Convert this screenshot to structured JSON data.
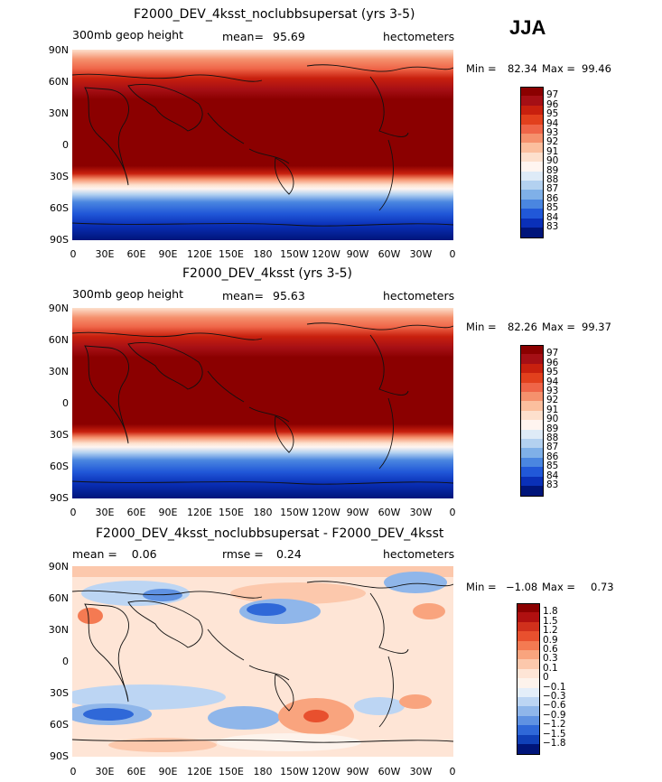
{
  "season": "JJA",
  "panels": [
    {
      "title": "F2000_DEV_4ksst_noclubbsupersat (yrs 3-5)",
      "left_text": "300mb geop height",
      "center_label": "mean=",
      "center_value": "95.69",
      "right_text": "hectometers",
      "min_label": "Min =",
      "min_value": "82.34",
      "max_label": "Max =",
      "max_value": "99.46",
      "colorbar_labels": [
        "97",
        "96",
        "95",
        "94",
        "93",
        "92",
        "91",
        "90",
        "89",
        "88",
        "87",
        "86",
        "85",
        "84",
        "83"
      ],
      "colorbar_colors": [
        "#8b0000",
        "#a50f15",
        "#c8200e",
        "#e2401d",
        "#ef6548",
        "#f5916d",
        "#fbbf9e",
        "#fde0cd",
        "#fff5f0",
        "#deebf7",
        "#b3d1f0",
        "#7fb0e8",
        "#4a86e0",
        "#2158d8",
        "#0a30b8",
        "#00157a"
      ]
    },
    {
      "title": "F2000_DEV_4ksst (yrs 3-5)",
      "left_text": "300mb geop height",
      "center_label": "mean=",
      "center_value": "95.63",
      "right_text": "hectometers",
      "min_label": "Min =",
      "min_value": "82.26",
      "max_label": "Max =",
      "max_value": "99.37",
      "colorbar_labels": [
        "97",
        "96",
        "95",
        "94",
        "93",
        "92",
        "91",
        "90",
        "89",
        "88",
        "87",
        "86",
        "85",
        "84",
        "83"
      ],
      "colorbar_colors": [
        "#8b0000",
        "#a50f15",
        "#c8200e",
        "#e2401d",
        "#ef6548",
        "#f5916d",
        "#fbbf9e",
        "#fde0cd",
        "#fff5f0",
        "#deebf7",
        "#b3d1f0",
        "#7fb0e8",
        "#4a86e0",
        "#2158d8",
        "#0a30b8",
        "#00157a"
      ]
    },
    {
      "title": "F2000_DEV_4ksst_noclubbsupersat - F2000_DEV_4ksst",
      "left_text": "mean =    0.06",
      "center_label": "rmse =",
      "center_value": "0.24",
      "right_text": "hectometers",
      "min_label": "Min =",
      "min_value": "−1.08",
      "max_label": "Max =",
      "max_value": "0.73",
      "colorbar_labels": [
        "1.8",
        "1.5",
        "1.2",
        "0.9",
        "0.6",
        "0.3",
        "0.1",
        "0",
        "−0.1",
        "−0.3",
        "−0.6",
        "−0.9",
        "−1.2",
        "−1.5",
        "−1.8"
      ],
      "colorbar_colors": [
        "#8b0000",
        "#b01010",
        "#d0301c",
        "#e8502e",
        "#f47a52",
        "#f9a47e",
        "#fcc8ac",
        "#fee5d6",
        "#fdf3ec",
        "#e4eef9",
        "#bcd5f3",
        "#8fb6ea",
        "#5f92e2",
        "#2f68d8",
        "#1040b8",
        "#00157a"
      ]
    }
  ],
  "map_axes": {
    "lat_labels": [
      "90N",
      "60N",
      "30N",
      "0",
      "30S",
      "60S",
      "90S"
    ],
    "lon_labels": [
      "0",
      "30E",
      "60E",
      "90E",
      "120E",
      "150E",
      "180",
      "150W",
      "120W",
      "90W",
      "60W",
      "30W",
      "0"
    ]
  },
  "colors": {
    "ocean_warm": "#8b0000",
    "background": "#ffffff"
  }
}
